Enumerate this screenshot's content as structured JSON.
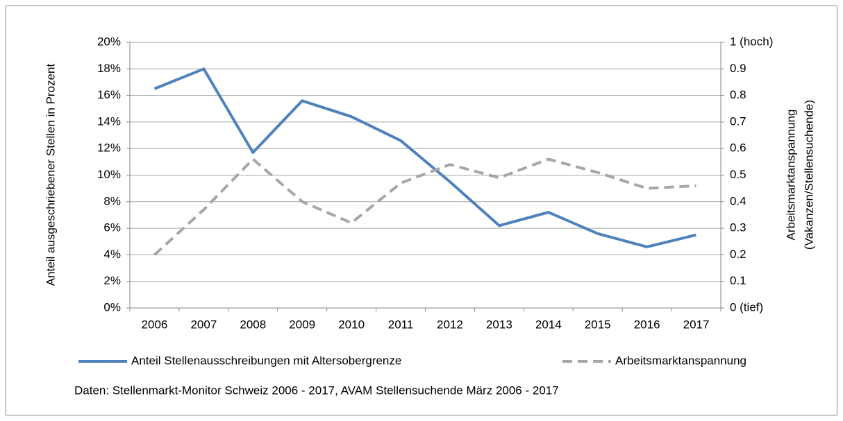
{
  "chart_data": {
    "type": "line",
    "categories": [
      "2006",
      "2007",
      "2008",
      "2009",
      "2010",
      "2011",
      "2012",
      "2013",
      "2014",
      "2015",
      "2016",
      "2017"
    ],
    "series": [
      {
        "name": "Anteil Stellenausschreibungen mit Altersobergrenze",
        "color": "#4f81bd",
        "dashed": false,
        "values": [
          16.5,
          18.0,
          11.7,
          15.6,
          14.4,
          12.6,
          9.5,
          6.2,
          7.2,
          5.6,
          4.6,
          5.5
        ]
      },
      {
        "name": "Arbeitsmarktanspannung",
        "color": "#a6a6a6",
        "dashed": true,
        "axis": "y2",
        "values": [
          0.2,
          0.37,
          0.56,
          0.4,
          0.32,
          0.47,
          0.54,
          0.49,
          0.56,
          0.51,
          0.45,
          0.46
        ]
      }
    ],
    "ylim": [
      0,
      20
    ],
    "yticks": [
      {
        "value": 0,
        "label": "0%"
      },
      {
        "value": 2,
        "label": "2%"
      },
      {
        "value": 4,
        "label": "4%"
      },
      {
        "value": 6,
        "label": "6%"
      },
      {
        "value": 8,
        "label": "8%"
      },
      {
        "value": 10,
        "label": "10%"
      },
      {
        "value": 12,
        "label": "12%"
      },
      {
        "value": 14,
        "label": "14%"
      },
      {
        "value": 16,
        "label": "16%"
      },
      {
        "value": 18,
        "label": "18%"
      },
      {
        "value": 20,
        "label": "20%"
      }
    ],
    "y2lim": [
      0,
      1
    ],
    "y2ticks": [
      {
        "value": 0,
        "label": "0 (tief)"
      },
      0.1,
      0.2,
      0.3,
      0.4,
      0.5,
      0.6,
      0.7,
      0.8,
      0.9,
      {
        "value": 1,
        "label": "1 (hoch)"
      }
    ],
    "ylabel": "Anteil ausgeschriebener Stellen in Prozent",
    "y2label": [
      "Arbeitsmarktanspannung",
      "(Vakanzen/Stellensuchende)"
    ],
    "note": "Daten: Stellenmarkt-Monitor Schweiz 2006 - 2017, AVAM Stellensuchende März 2006 - 2017",
    "grid": true,
    "legend": "bottom"
  }
}
